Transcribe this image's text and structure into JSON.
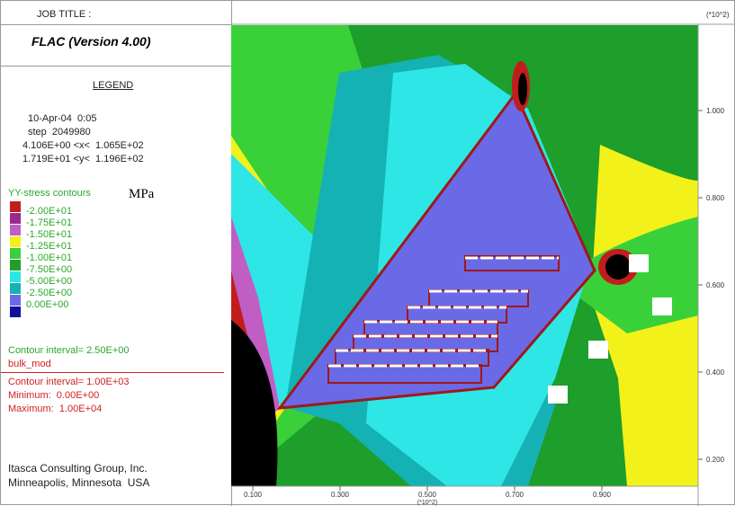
{
  "header": {
    "job_title": "JOB TITLE :",
    "right_units": "(*10^2)"
  },
  "panel": {
    "program": "FLAC (Version 4.00)",
    "legend_heading": "LEGEND",
    "info": [
      "10-Apr-04  0:05",
      "step  2049980",
      "4.106E+00 <x<  1.065E+02",
      "1.719E+01 <y<  1.196E+02"
    ],
    "contour_title": "YY-stress contours",
    "contour_unit": "MPa",
    "levels": [
      "-2.00E+01",
      "-1.75E+01",
      "-1.50E+01",
      "-1.25E+01",
      "-1.00E+01",
      "-7.50E+00",
      "-5.00E+00",
      "-2.50E+00",
      "0.00E+00"
    ],
    "swatch_colors": [
      "#c21d1d",
      "#9a2a8a",
      "#c15ec4",
      "#f2f21a",
      "#3ad03a",
      "#1e9e2a",
      "#2ee6e6",
      "#14b2b4",
      "#6a6ae6",
      "#101098"
    ],
    "contour_interval": "Contour interval= 2.50E+00",
    "bulk_title": "bulk_mod",
    "bulk_lines": [
      "Contour interval= 1.00E+03",
      "Minimum:  0.00E+00",
      "Maximum:  1.00E+04"
    ],
    "footer": [
      "Itasca Consulting Group, Inc.",
      "Minneapolis, Minnesota  USA"
    ]
  },
  "plot": {
    "x_ticks": [
      "0.100",
      "0.300",
      "0.500",
      "0.700",
      "0.900"
    ],
    "x_unit": "(*10^2)",
    "y_ticks": [
      "1.000",
      "0.800",
      "0.600",
      "0.400",
      "0.200"
    ]
  }
}
